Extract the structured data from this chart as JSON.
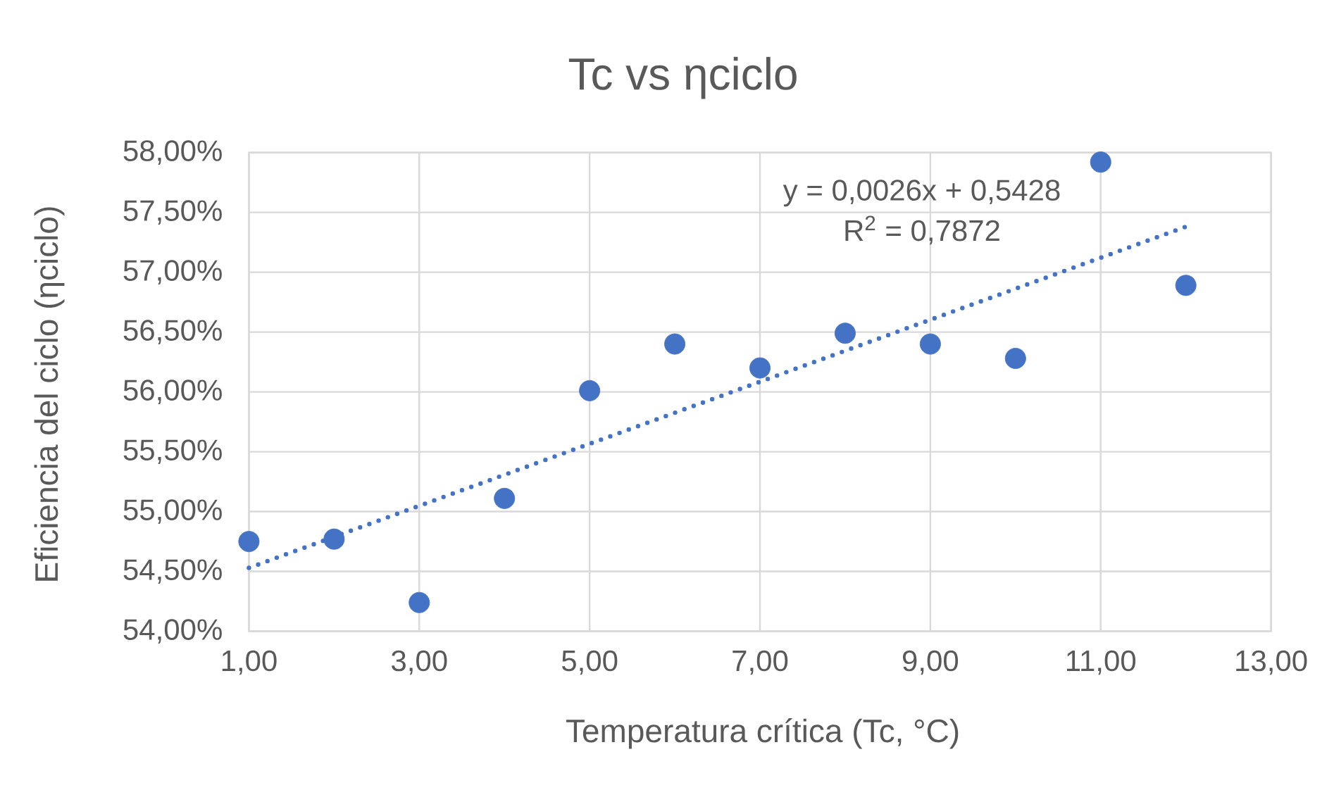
{
  "chart_data": {
    "type": "scatter",
    "title": "Tc vs ηciclo",
    "xlabel": "Temperatura crítica (Tc, °C)",
    "ylabel": "Eficiencia del ciclo (ηciclo)",
    "annotations": [
      "y = 0,0026x + 0,5428",
      "R$^{2}$ = 0,7872"
    ],
    "series": [
      {
        "color": "#4472c4",
        "marker": "circle",
        "x": [
          1,
          2,
          3,
          4,
          5,
          6,
          7,
          8,
          9,
          10,
          11,
          12
        ],
        "values": [
          54.75,
          54.77,
          54.24,
          55.11,
          56.01,
          56.4,
          56.2,
          56.49,
          56.4,
          56.28,
          57.92,
          56.89
        ]
      },
      {
        "type": "line",
        "color": "#4472c4",
        "marker": "none",
        "line_style": "dotted",
        "x": [
          1,
          12
        ],
        "values": [
          54.53,
          57.38
        ]
      }
    ],
    "xlim": [
      1,
      13
    ],
    "xticks": [
      {
        "value": 1,
        "label": "1,00"
      },
      {
        "value": 3,
        "label": "3,00"
      },
      {
        "value": 5,
        "label": "5,00"
      },
      {
        "value": 7,
        "label": "7,00"
      },
      {
        "value": 9,
        "label": "9,00"
      },
      {
        "value": 11,
        "label": "11,00"
      },
      {
        "value": 13,
        "label": "13,00"
      }
    ],
    "ylim": [
      54,
      58
    ],
    "yticks": [
      {
        "value": 54,
        "label": "54,00%"
      },
      {
        "value": 54.5,
        "label": "54,50%"
      },
      {
        "value": 55,
        "label": "55,00%"
      },
      {
        "value": 55.5,
        "label": "55,50%"
      },
      {
        "value": 56,
        "label": "56,00%"
      },
      {
        "value": 56.5,
        "label": "56,50%"
      },
      {
        "value": 57,
        "label": "57,00%"
      },
      {
        "value": 57.5,
        "label": "57,50%"
      },
      {
        "value": 58,
        "label": "58,00%"
      }
    ],
    "grid": true
  }
}
